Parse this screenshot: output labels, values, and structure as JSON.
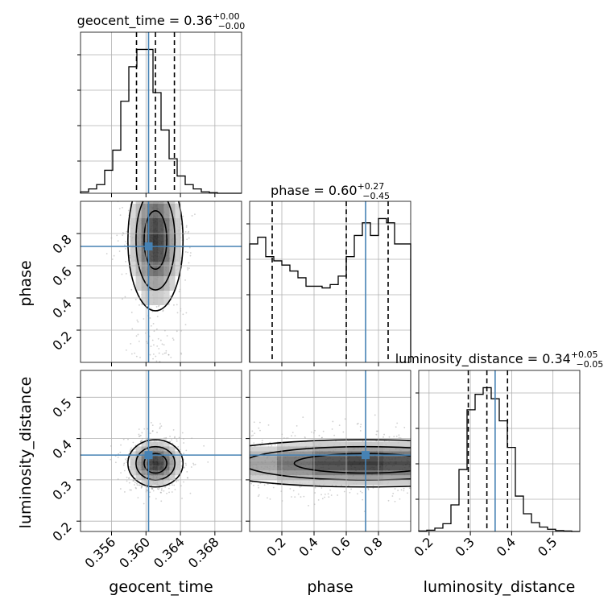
{
  "chart_data": {
    "type": "corner",
    "parameters": [
      {
        "name": "geocent_time",
        "axis_label": "geocent_time",
        "title_value": "0.36",
        "title_plus": "+0.00",
        "title_minus": "−0.00",
        "range": [
          0.3524,
          0.3711
        ],
        "ticks": [
          0.356,
          0.36,
          0.364,
          0.368
        ],
        "tick_labels": [
          "0.356",
          "0.360",
          "0.364",
          "0.368"
        ],
        "quantiles": [
          0.3589,
          0.3611,
          0.3633
        ],
        "truth": 0.3603,
        "hist": [
          0.5,
          1.5,
          3,
          8,
          15,
          32,
          44,
          50,
          50,
          35,
          22,
          12,
          6,
          3,
          1.5,
          0.5,
          0.2,
          0,
          0,
          0
        ]
      },
      {
        "name": "phase",
        "axis_label": "phase",
        "title_value": "0.60",
        "title_plus": "+0.27",
        "title_minus": "−0.45",
        "range": [
          0.0,
          1.0
        ],
        "ticks": [
          0.2,
          0.4,
          0.6,
          0.8
        ],
        "tick_labels": [
          "0.2",
          "0.4",
          "0.6",
          "0.8"
        ],
        "quantiles": [
          0.14,
          0.6,
          0.86
        ],
        "truth": 0.72,
        "hist": [
          140,
          148,
          125,
          120,
          115,
          108,
          100,
          90,
          90,
          88,
          92,
          102,
          125,
          150,
          165,
          150,
          170,
          165,
          140,
          140
        ]
      },
      {
        "name": "luminosity_distance",
        "axis_label": "luminosity_distance",
        "title_value": "0.34",
        "title_plus": "+0.05",
        "title_minus": "−0.05",
        "range": [
          0.175,
          0.565
        ],
        "ticks": [
          0.2,
          0.3,
          0.4,
          0.5
        ],
        "tick_labels": [
          "0.2",
          "0.3",
          "0.4",
          "0.5"
        ],
        "quantiles": [
          0.295,
          0.34,
          0.39
        ],
        "truth": 0.36,
        "hist": [
          0.2,
          0.6,
          1.5,
          3.5,
          12,
          28,
          55,
          62,
          65,
          60,
          50,
          38,
          16,
          8,
          4,
          2,
          1,
          0.4,
          0.2,
          0
        ]
      }
    ],
    "truth_color": "#4682b4",
    "grid": true,
    "contour_levels": 3,
    "ylim_hist": [
      0,
      70
    ]
  }
}
